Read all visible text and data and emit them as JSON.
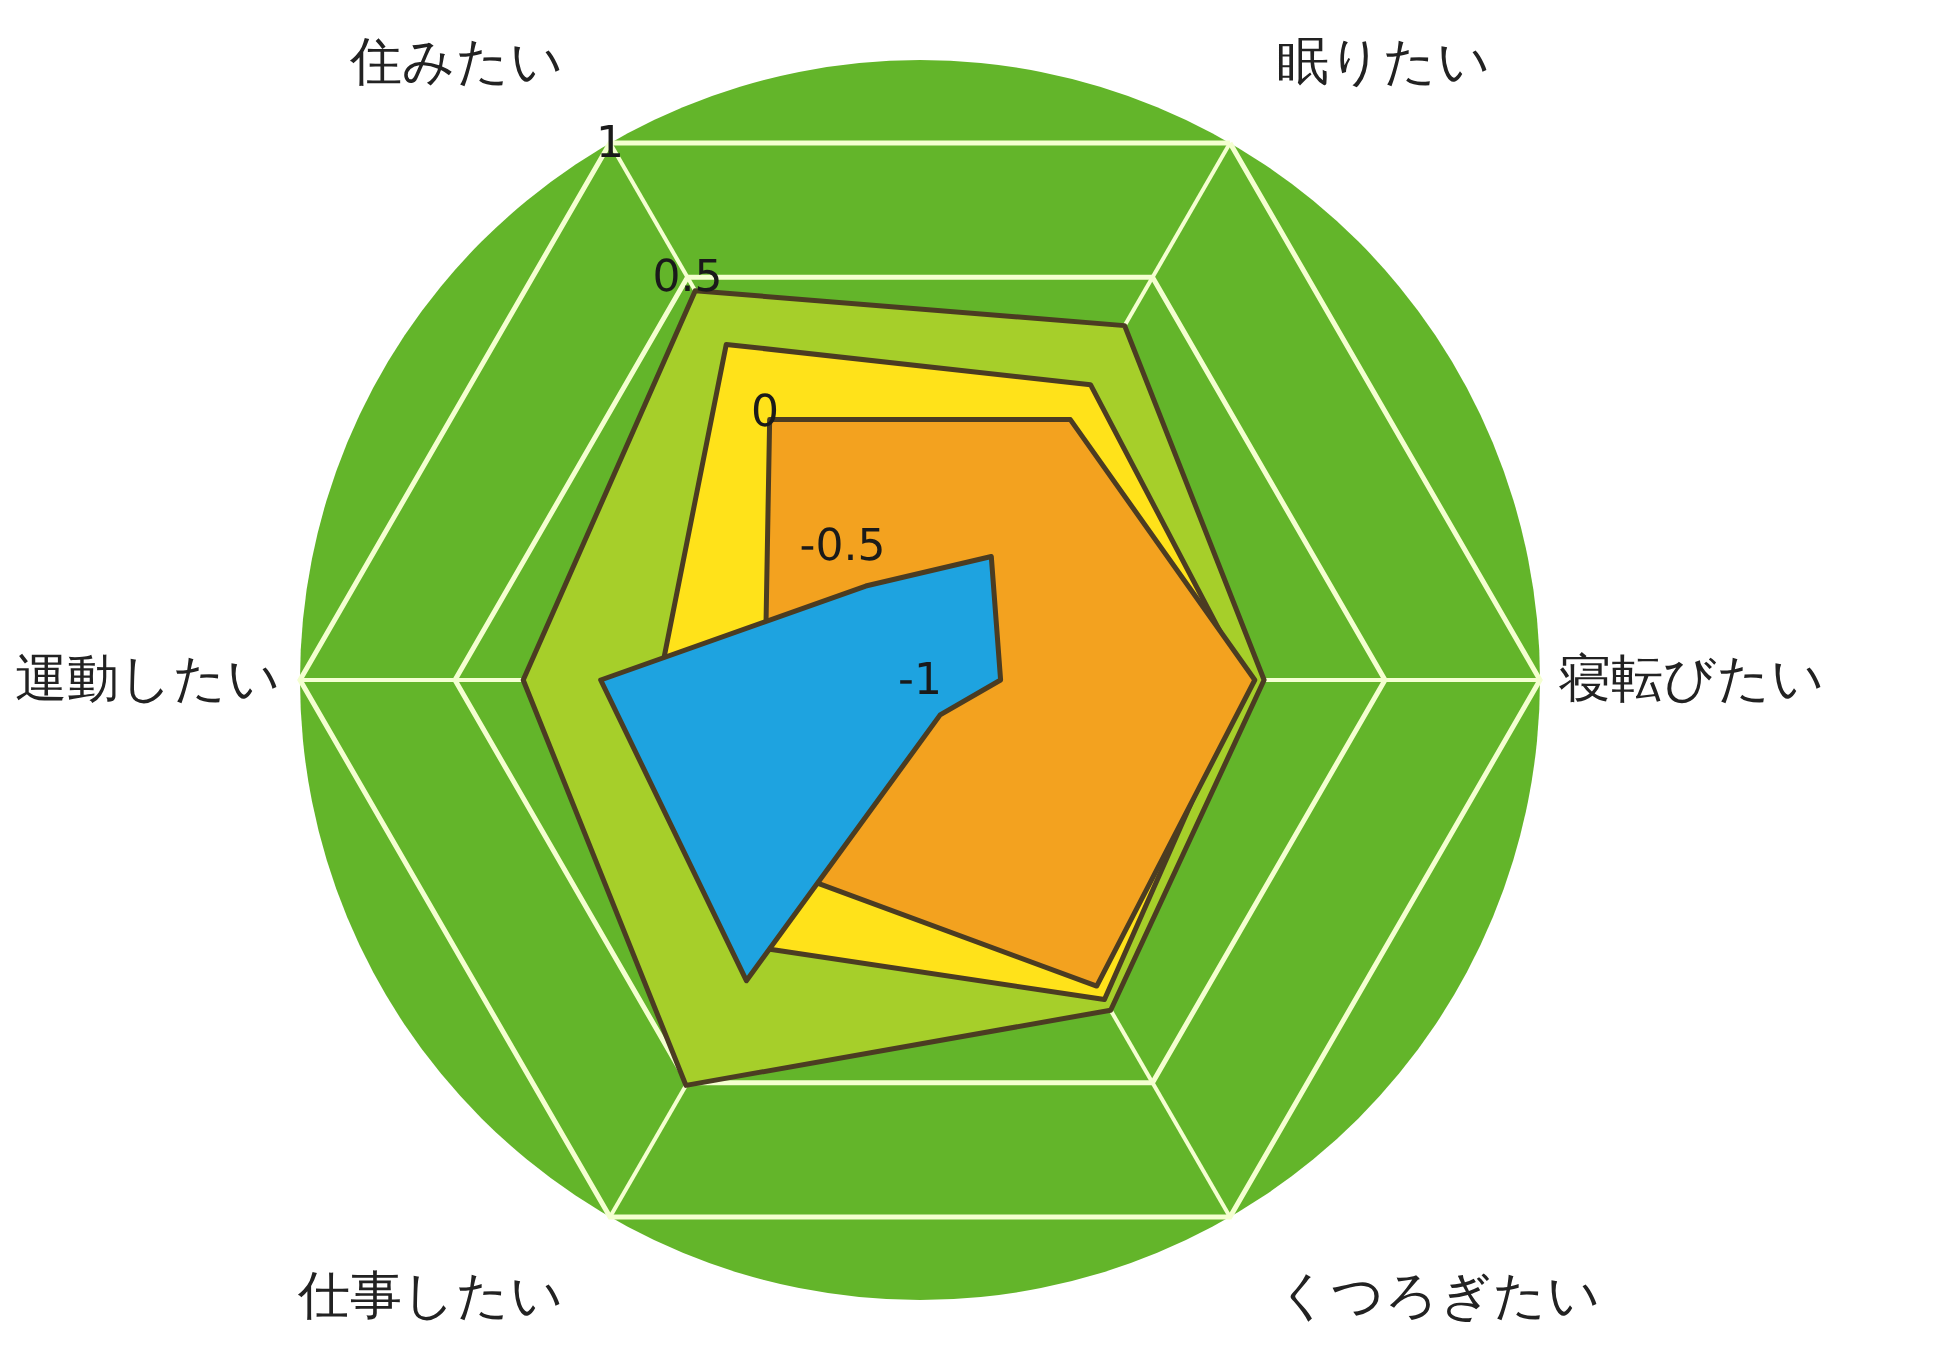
{
  "chart_data": {
    "type": "radar",
    "categories": [
      "眠りたい",
      "寝転びたい",
      "くつろぎたい",
      "仕事したい",
      "運動したい",
      "住みたい"
    ],
    "ylim": [
      -1,
      1
    ],
    "yticks": [
      -1,
      -0.5,
      0,
      0.5,
      1
    ],
    "grid": true,
    "series": [
      {
        "color": "#a6cf2a",
        "values": [
          0.32,
          0.11,
          0.23,
          0.51,
          0.28,
          0.45
        ]
      },
      {
        "color": "#ffe21a",
        "values": [
          0.1,
          0.05,
          0.19,
          0.0,
          -0.16,
          0.25
        ]
      },
      {
        "color": "#f3a21f",
        "values": [
          -0.03,
          0.08,
          0.14,
          -0.26,
          -0.5,
          -0.03
        ]
      },
      {
        "color": "#1ea3e0",
        "values": [
          -0.54,
          -0.74,
          -0.87,
          0.12,
          0.03,
          -0.65
        ]
      }
    ]
  }
}
